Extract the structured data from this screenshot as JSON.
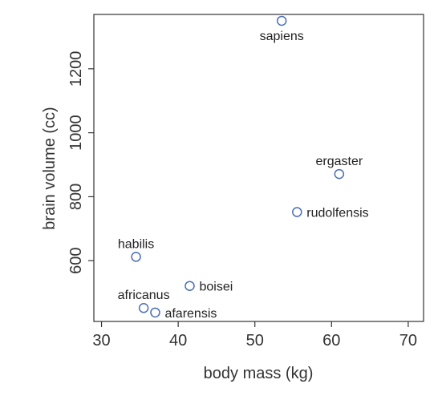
{
  "chart_data": {
    "type": "scatter",
    "title": "",
    "xlabel": "body mass (kg)",
    "ylabel": "brain volume (cc)",
    "xlim": [
      29,
      72
    ],
    "ylim": [
      410,
      1370
    ],
    "xticks": [
      30,
      40,
      50,
      60,
      70
    ],
    "yticks": [
      600,
      800,
      1000,
      1200
    ],
    "grid": false,
    "legend": "none",
    "point_color": "#4a6fb5",
    "points": [
      {
        "label": "afarensis",
        "x": 37.0,
        "y": 438,
        "label_position": "right"
      },
      {
        "label": "africanus",
        "x": 35.5,
        "y": 452,
        "label_position": "above"
      },
      {
        "label": "habilis",
        "x": 34.5,
        "y": 612,
        "label_position": "above"
      },
      {
        "label": "boisei",
        "x": 41.5,
        "y": 521,
        "label_position": "right"
      },
      {
        "label": "rudolfensis",
        "x": 55.5,
        "y": 752,
        "label_position": "right"
      },
      {
        "label": "ergaster",
        "x": 61.0,
        "y": 871,
        "label_position": "above"
      },
      {
        "label": "sapiens",
        "x": 53.5,
        "y": 1350,
        "label_position": "below"
      }
    ]
  }
}
